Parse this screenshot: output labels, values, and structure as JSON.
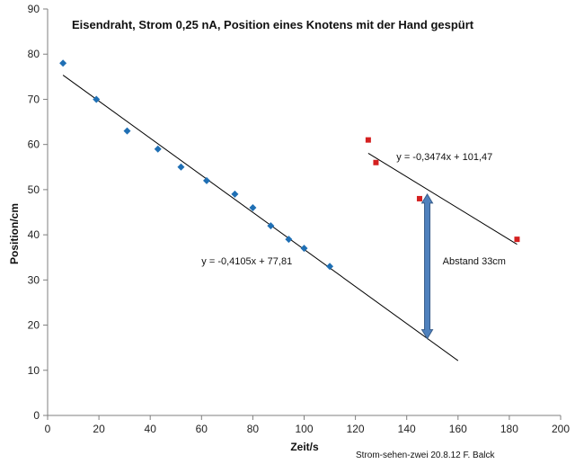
{
  "chart_data": {
    "type": "scatter",
    "title": "Eisendraht, Strom 0,25 nA, Position eines Knotens mit der Hand gespürt",
    "xlabel": "Zeit/s",
    "ylabel": "Position/cm",
    "xlim": [
      0,
      200
    ],
    "ylim": [
      0,
      90
    ],
    "x_ticks": [
      0,
      20,
      40,
      60,
      80,
      100,
      120,
      140,
      160,
      180,
      200
    ],
    "y_ticks": [
      0,
      10,
      20,
      30,
      40,
      50,
      60,
      70,
      80,
      90
    ],
    "grid": false,
    "legend": "none",
    "series": [
      {
        "marker": "diamond",
        "color": "#1f6fb4",
        "x": [
          6,
          19,
          31,
          43,
          52,
          62,
          73,
          80,
          87,
          94,
          100,
          110
        ],
        "y": [
          78,
          70,
          63,
          59,
          55,
          52,
          49,
          46,
          42,
          39,
          37,
          33
        ]
      },
      {
        "marker": "square",
        "color": "#d42020",
        "x": [
          125,
          128,
          145,
          183
        ],
        "y": [
          61,
          56,
          48,
          39
        ]
      }
    ],
    "trendlines": [
      {
        "slope": -0.4105,
        "intercept": 77.81,
        "x_range": [
          6,
          160
        ],
        "equation": "y = -0,4105x + 77,81",
        "label_at": [
          60,
          33.5
        ]
      },
      {
        "slope": -0.3474,
        "intercept": 101.47,
        "x_range": [
          125,
          183
        ],
        "equation": "y = -0,3474x + 101,47",
        "label_at": [
          136,
          56.5
        ]
      }
    ],
    "annotations": [
      {
        "type": "double-arrow",
        "color": "#4f81bd",
        "x": 148,
        "y_from": 49,
        "y_to": 17,
        "label": "Abstand 33cm",
        "label_at": [
          154,
          33.5
        ]
      }
    ],
    "footnote": "Strom-sehen-zwei 20.8.12 F. Balck"
  }
}
